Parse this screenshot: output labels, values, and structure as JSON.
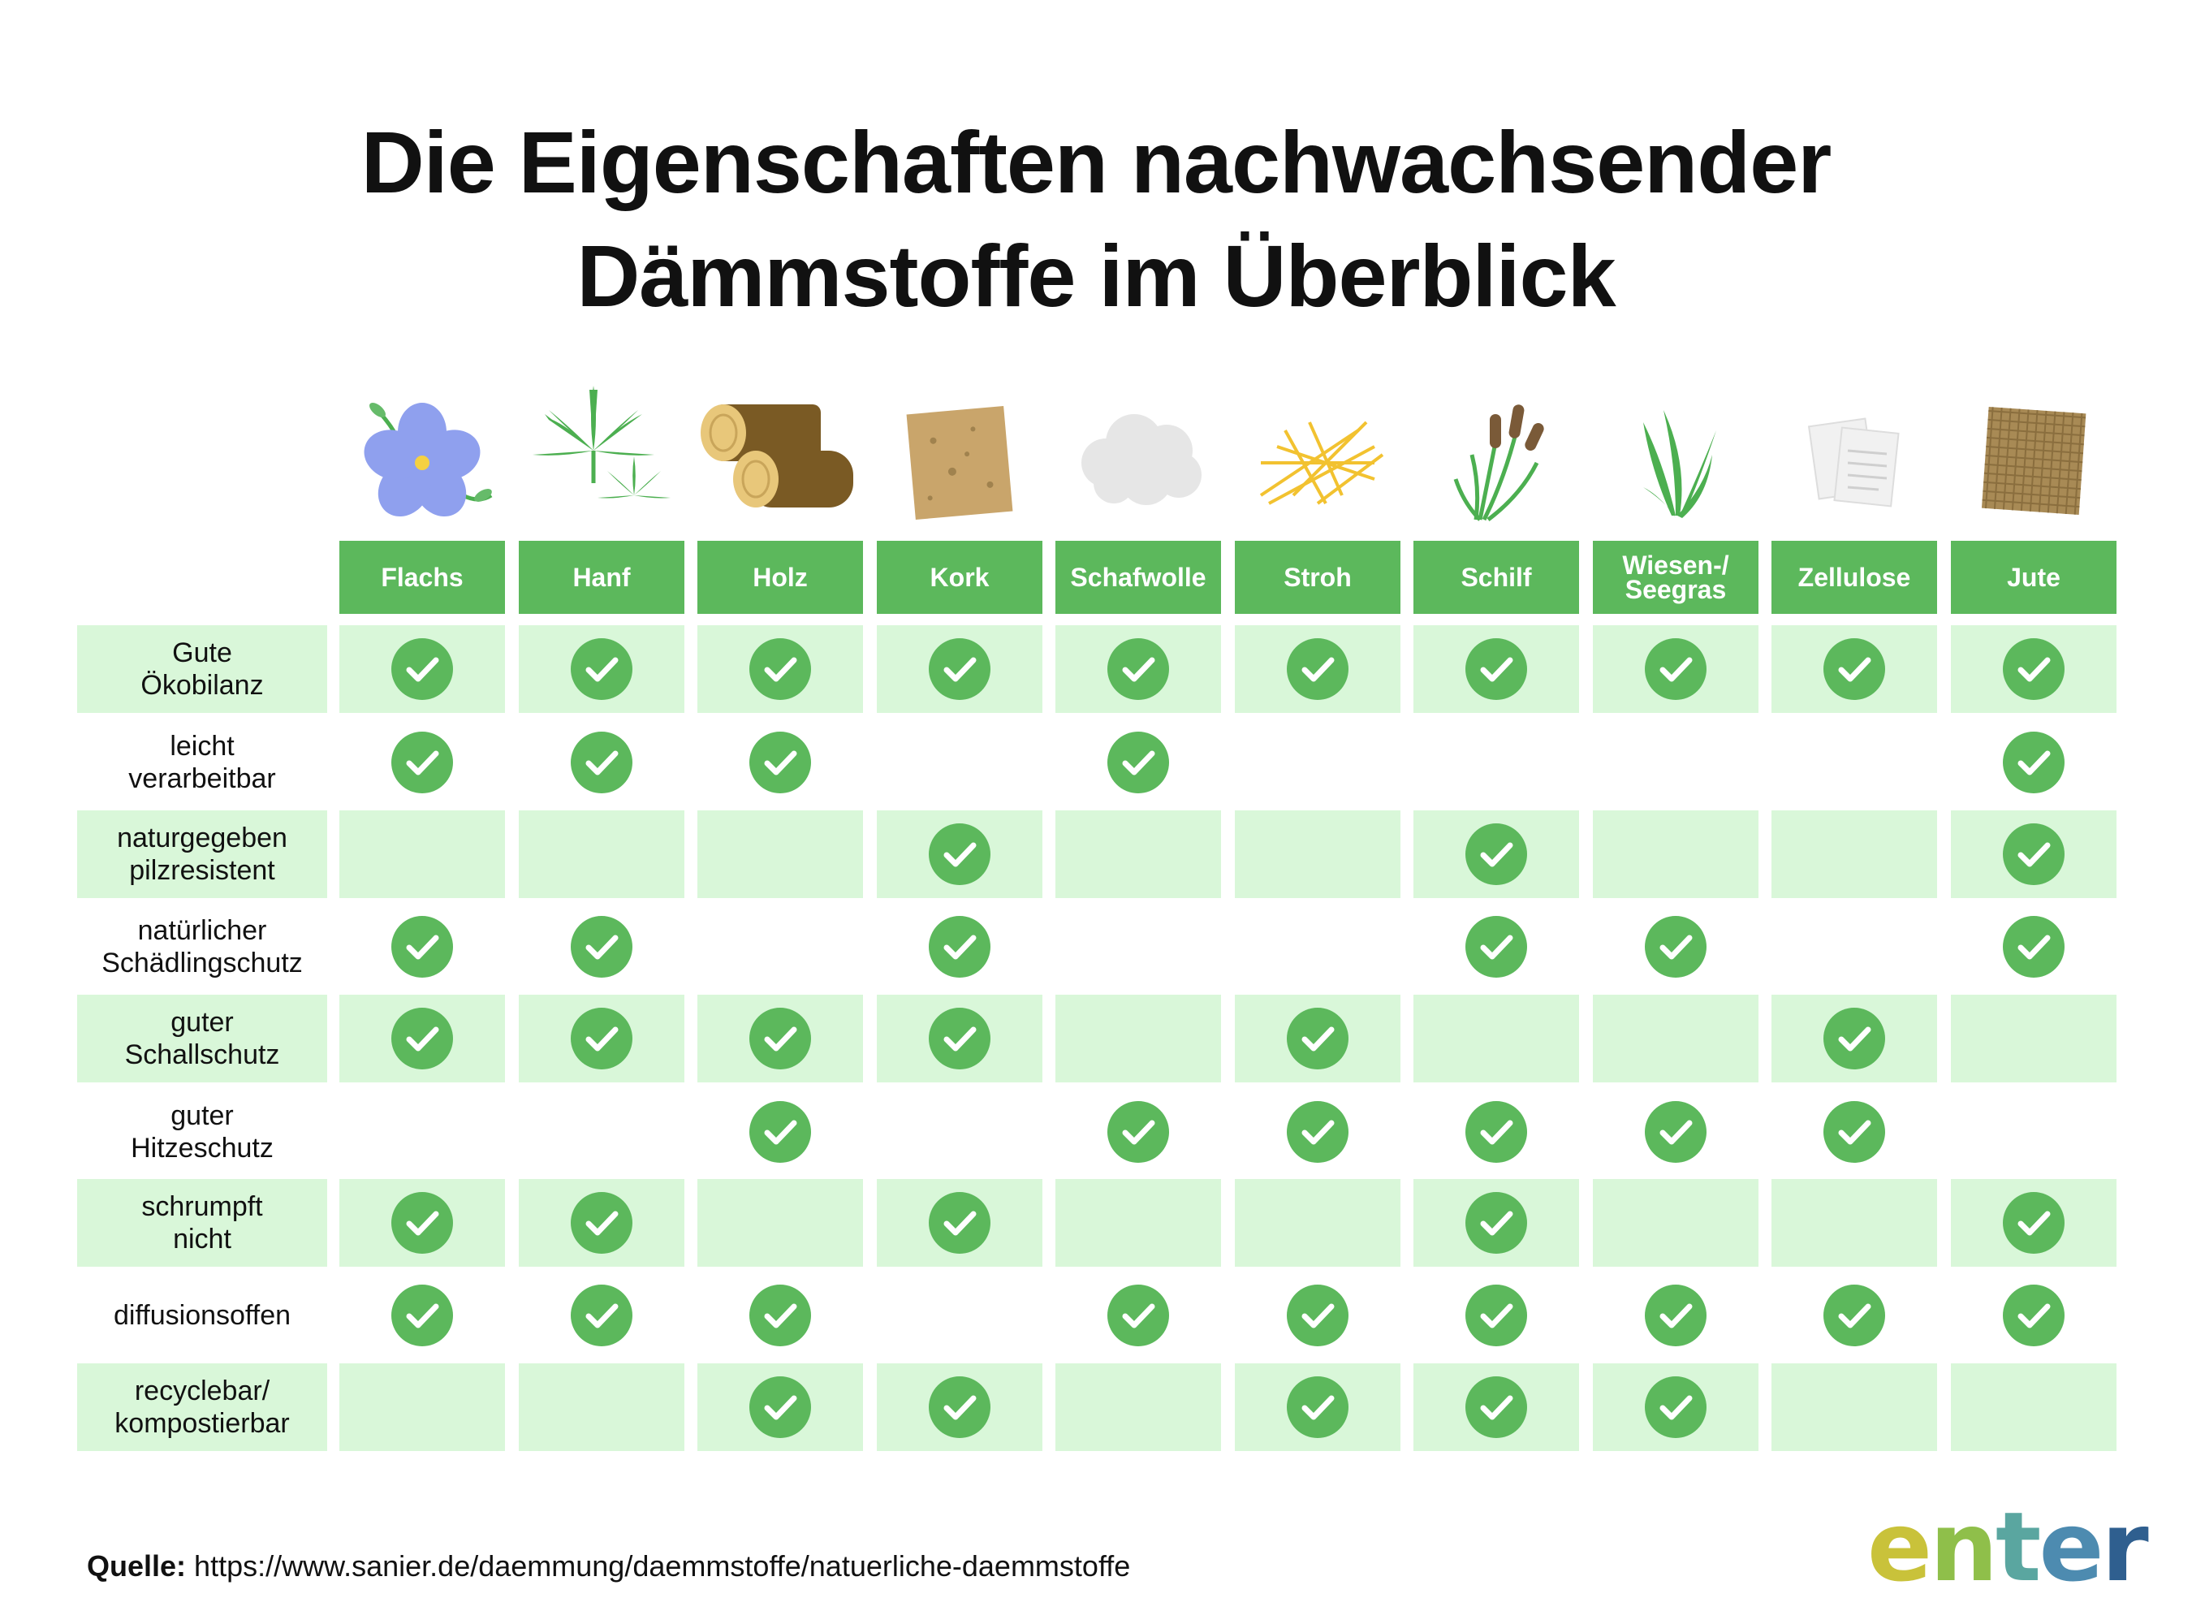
{
  "title": {
    "line1": "Die Eigenschaften nachwachsender",
    "line2": "Dämmstoffe im Überblick"
  },
  "columns": [
    {
      "label": "Flachs",
      "icon": "flax-flower-icon"
    },
    {
      "label": "Hanf",
      "icon": "hemp-leaf-icon"
    },
    {
      "label": "Holz",
      "icon": "wood-logs-icon"
    },
    {
      "label": "Kork",
      "icon": "cork-board-icon"
    },
    {
      "label": "Schafwolle",
      "icon": "sheep-wool-icon"
    },
    {
      "label": "Stroh",
      "icon": "straw-icon"
    },
    {
      "label": "Schilf",
      "icon": "reed-icon"
    },
    {
      "label": "Wiesen-/",
      "label2": "Seegras",
      "icon": "seagrass-icon"
    },
    {
      "label": "Zellulose",
      "icon": "cellulose-paper-icon"
    },
    {
      "label": "Jute",
      "icon": "jute-mat-icon"
    }
  ],
  "rows": [
    {
      "label1": "Gute",
      "label2": "Ökobilanz",
      "shaded": true,
      "checks": [
        true,
        true,
        true,
        true,
        true,
        true,
        true,
        true,
        true,
        true
      ]
    },
    {
      "label1": "leicht",
      "label2": "verarbeitbar",
      "shaded": false,
      "checks": [
        true,
        true,
        true,
        false,
        true,
        false,
        false,
        false,
        false,
        true
      ]
    },
    {
      "label1": "naturgegeben",
      "label2": "pilzresistent",
      "shaded": true,
      "checks": [
        false,
        false,
        false,
        true,
        false,
        false,
        true,
        false,
        false,
        true
      ]
    },
    {
      "label1": "natürlicher",
      "label2": "Schädlingschutz",
      "shaded": false,
      "checks": [
        true,
        true,
        false,
        true,
        false,
        false,
        true,
        true,
        false,
        true
      ]
    },
    {
      "label1": "guter",
      "label2": "Schallschutz",
      "shaded": true,
      "checks": [
        true,
        true,
        true,
        true,
        false,
        true,
        false,
        false,
        true,
        false
      ]
    },
    {
      "label1": "guter",
      "label2": "Hitzeschutz",
      "shaded": false,
      "checks": [
        false,
        false,
        true,
        false,
        true,
        true,
        true,
        true,
        true,
        false
      ]
    },
    {
      "label1": "schrumpft",
      "label2": "nicht",
      "shaded": true,
      "checks": [
        true,
        true,
        false,
        true,
        false,
        false,
        true,
        false,
        false,
        true
      ]
    },
    {
      "label1": "diffusionsoffen",
      "label2": "",
      "shaded": false,
      "checks": [
        true,
        true,
        true,
        false,
        true,
        true,
        true,
        true,
        true,
        true
      ]
    },
    {
      "label1": "recyclebar/",
      "label2": "kompostierbar",
      "shaded": true,
      "checks": [
        false,
        false,
        true,
        true,
        false,
        true,
        true,
        true,
        false,
        false
      ]
    }
  ],
  "source": {
    "label": "Quelle:",
    "url": "https://www.sanier.de/daemmung/daemmstoffe/natuerliche-daemmstoffe"
  },
  "logo": {
    "text": "enter",
    "letter_colors": [
      "#c9c23a",
      "#8fbf4a",
      "#5aa6a0",
      "#4d8bb0",
      "#2f5f8f"
    ]
  },
  "colors": {
    "header_green": "#5cb85c",
    "row_shade": "#d9f7d9",
    "check_green": "#5cb85c"
  }
}
